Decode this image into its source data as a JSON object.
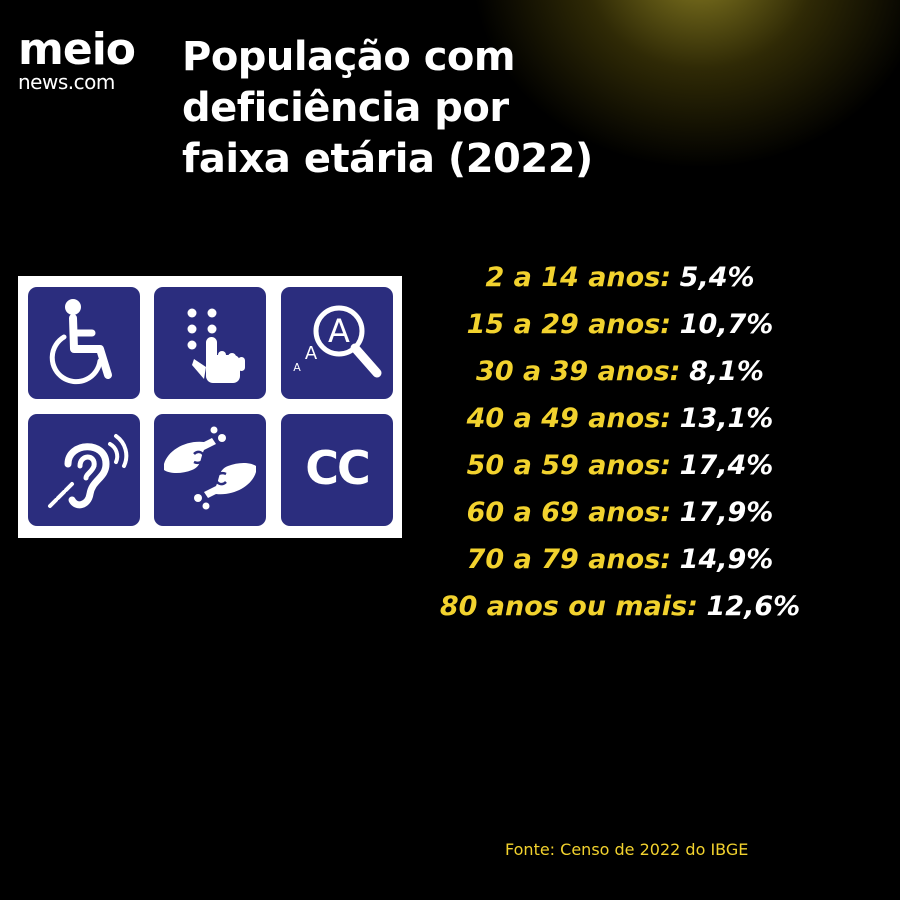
{
  "logo": {
    "main": "meio",
    "sub": "news.com"
  },
  "title": "População com\ndeficiência por\nfaixa etária (2022)",
  "icons": {
    "items": [
      "wheelchair-icon",
      "braille-icon",
      "text-magnifier-icon",
      "hearing-assist-icon",
      "sign-language-icon",
      "closed-captions-icon"
    ],
    "cc_text": "CC",
    "magnifier_big_letter": "A",
    "magnifier_small_letters": [
      "A",
      "A"
    ],
    "colors": {
      "tile": "#2b2d7e",
      "panel": "#ffffff",
      "glyph": "#ffffff"
    }
  },
  "stats": [
    {
      "label": "2 a 14 anos:",
      "value": "5,4%"
    },
    {
      "label": "15 a 29 anos:",
      "value": "10,7%"
    },
    {
      "label": "30 a 39 anos:",
      "value": "8,1%"
    },
    {
      "label": "40 a 49 anos:",
      "value": "13,1%"
    },
    {
      "label": "50 a 59 anos:",
      "value": "17,4%"
    },
    {
      "label": "60 a 69 anos:",
      "value": "17,9%"
    },
    {
      "label": "70 a 79 anos:",
      "value": "14,9%"
    },
    {
      "label": "80 anos ou mais:",
      "value": "12,6%"
    }
  ],
  "source": "Fonte: Censo de 2022 do IBGE",
  "colors": {
    "background": "#000000",
    "accent": "#f2d22e",
    "text": "#ffffff"
  }
}
